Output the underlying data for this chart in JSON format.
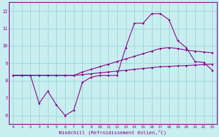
{
  "xlabel": "Windchill (Refroidissement éolien,°C)",
  "bg_color": "#c8eef0",
  "grid_color": "#a0d8d8",
  "line_color": "#880088",
  "xlim": [
    -0.5,
    23.5
  ],
  "ylim": [
    5.5,
    12.5
  ],
  "xticks": [
    0,
    1,
    2,
    3,
    4,
    5,
    6,
    7,
    8,
    9,
    10,
    11,
    12,
    13,
    14,
    15,
    16,
    17,
    18,
    19,
    20,
    21,
    22,
    23
  ],
  "yticks": [
    6,
    7,
    8,
    9,
    10,
    11,
    12
  ],
  "series1_x": [
    0,
    1,
    2,
    3,
    4,
    5,
    6,
    7,
    8,
    9,
    10,
    11,
    12,
    13,
    14,
    15,
    16,
    17,
    18,
    19,
    20,
    21,
    22,
    23
  ],
  "series1_y": [
    8.3,
    8.3,
    8.3,
    8.3,
    8.3,
    8.3,
    8.3,
    8.3,
    8.35,
    8.4,
    8.45,
    8.5,
    8.55,
    8.6,
    8.65,
    8.7,
    8.75,
    8.8,
    8.82,
    8.85,
    8.87,
    8.9,
    8.92,
    8.95
  ],
  "series2_x": [
    0,
    1,
    2,
    3,
    4,
    5,
    6,
    7,
    8,
    9,
    10,
    11,
    12,
    13,
    14,
    15,
    16,
    17,
    18,
    19,
    20,
    21,
    22,
    23
  ],
  "series2_y": [
    8.3,
    8.3,
    8.3,
    8.3,
    8.3,
    8.3,
    8.3,
    8.3,
    8.5,
    8.65,
    8.8,
    8.95,
    9.1,
    9.25,
    9.4,
    9.55,
    9.7,
    9.85,
    9.9,
    9.85,
    9.75,
    9.7,
    9.65,
    9.6
  ],
  "series3_x": [
    0,
    1,
    2,
    3,
    4,
    5,
    6,
    7,
    8,
    9,
    10,
    11,
    12,
    13,
    14,
    15,
    16,
    17,
    18,
    19,
    20,
    21,
    22,
    23
  ],
  "series3_y": [
    8.3,
    8.3,
    8.3,
    6.7,
    7.4,
    6.6,
    6.0,
    6.3,
    7.9,
    8.2,
    8.3,
    8.3,
    8.3,
    9.9,
    11.3,
    11.3,
    11.85,
    11.85,
    11.5,
    10.3,
    9.9,
    9.1,
    9.05,
    8.6
  ]
}
